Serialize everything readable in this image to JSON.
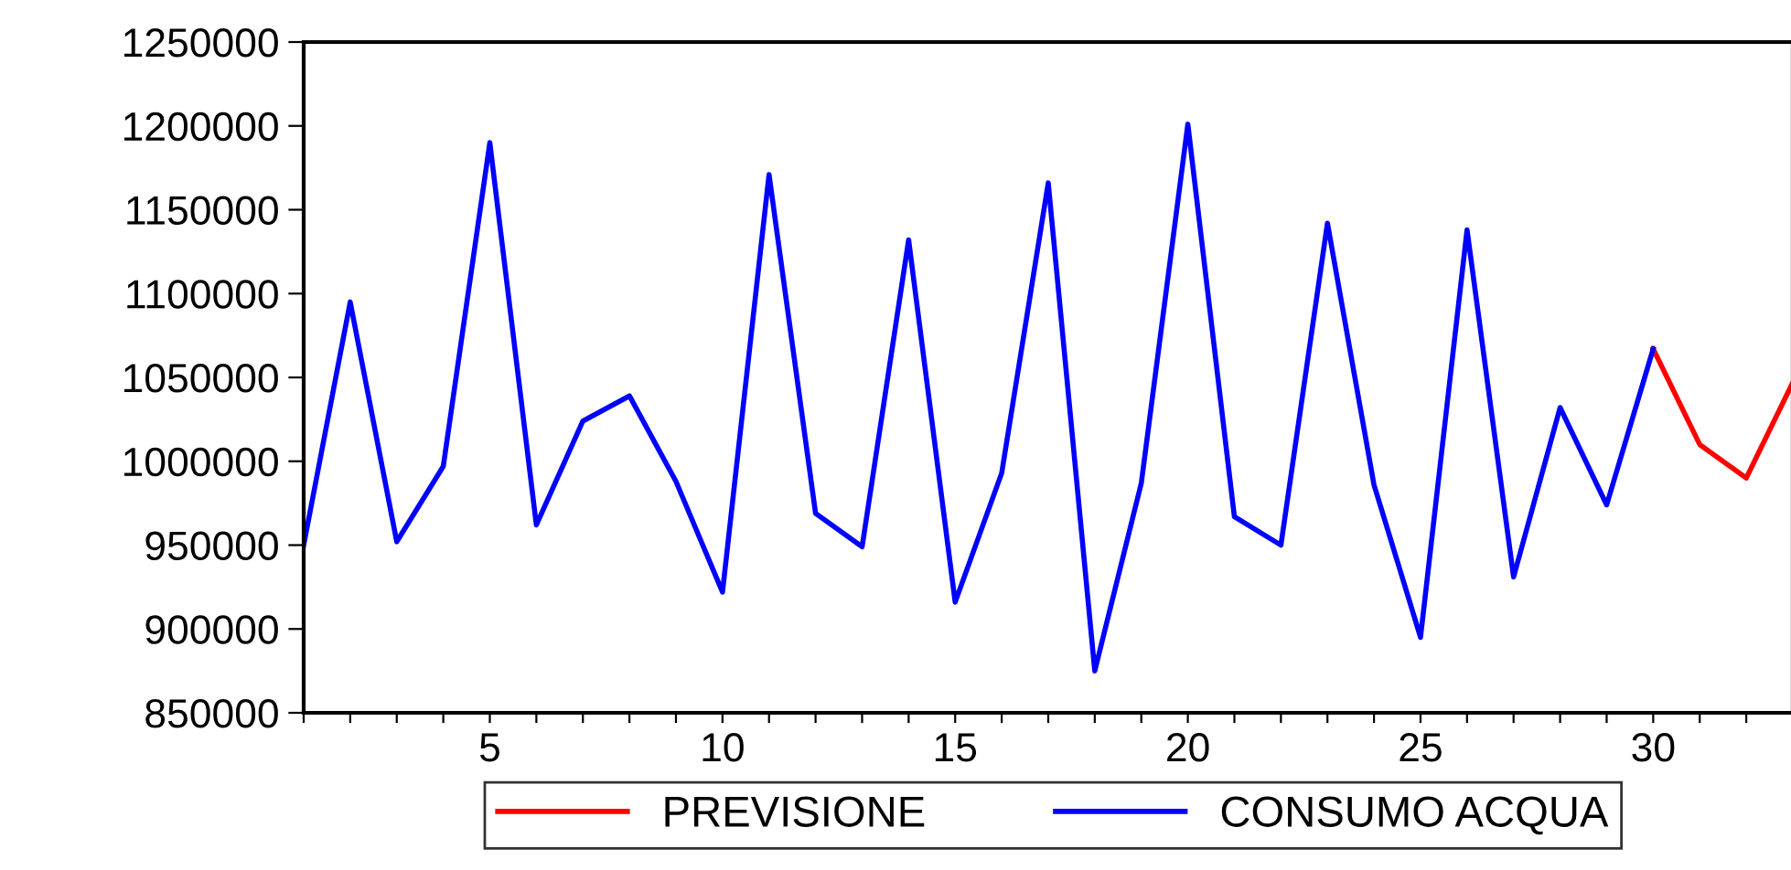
{
  "chart_data": {
    "type": "line",
    "xlim": [
      1,
      33
    ],
    "ylim": [
      850000,
      1250000
    ],
    "yticks": [
      850000,
      900000,
      950000,
      1000000,
      1050000,
      1100000,
      1150000,
      1200000,
      1250000
    ],
    "xticks": [
      {
        "value": 1,
        "label": null
      },
      {
        "value": 2,
        "label": null
      },
      {
        "value": 3,
        "label": null
      },
      {
        "value": 4,
        "label": null
      },
      5,
      {
        "value": 6,
        "label": null
      },
      {
        "value": 7,
        "label": null
      },
      {
        "value": 8,
        "label": null
      },
      {
        "value": 9,
        "label": null
      },
      10,
      {
        "value": 11,
        "label": null
      },
      {
        "value": 12,
        "label": null
      },
      {
        "value": 13,
        "label": null
      },
      {
        "value": 14,
        "label": null
      },
      15,
      {
        "value": 16,
        "label": null
      },
      {
        "value": 17,
        "label": null
      },
      {
        "value": 18,
        "label": null
      },
      {
        "value": 19,
        "label": null
      },
      20,
      {
        "value": 21,
        "label": null
      },
      {
        "value": 22,
        "label": null
      },
      {
        "value": 23,
        "label": null
      },
      {
        "value": 24,
        "label": null
      },
      25,
      {
        "value": 26,
        "label": null
      },
      {
        "value": 27,
        "label": null
      },
      {
        "value": 28,
        "label": null
      },
      {
        "value": 29,
        "label": null
      },
      30,
      {
        "value": 31,
        "label": null
      },
      {
        "value": 32,
        "label": null
      },
      {
        "value": 33,
        "label": null
      }
    ],
    "grid": false,
    "legend": "bottom",
    "marker": "none",
    "line_style": "solid",
    "series": [
      {
        "name": "PREVISIONE",
        "color": "#ff0000",
        "x": [
          30,
          31,
          32,
          33
        ],
        "values": [
          1067000,
          1010000,
          990000,
          1047000
        ]
      },
      {
        "name": "CONSUMO ACQUA",
        "color": "#0000ff",
        "x": [
          1,
          2,
          3,
          4,
          5,
          6,
          7,
          8,
          9,
          10,
          11,
          12,
          13,
          14,
          15,
          16,
          17,
          18,
          19,
          20,
          21,
          22,
          23,
          24,
          25,
          26,
          27,
          28,
          29,
          30
        ],
        "values": [
          950000,
          1095000,
          952000,
          997000,
          1190000,
          962000,
          1024000,
          1039000,
          988000,
          922000,
          1171000,
          969000,
          949000,
          1132000,
          916000,
          993000,
          1166000,
          875000,
          987000,
          1201000,
          967000,
          950000,
          1142000,
          986000,
          895000,
          1138000,
          931000,
          1032000,
          974000,
          1067000
        ]
      }
    ]
  }
}
